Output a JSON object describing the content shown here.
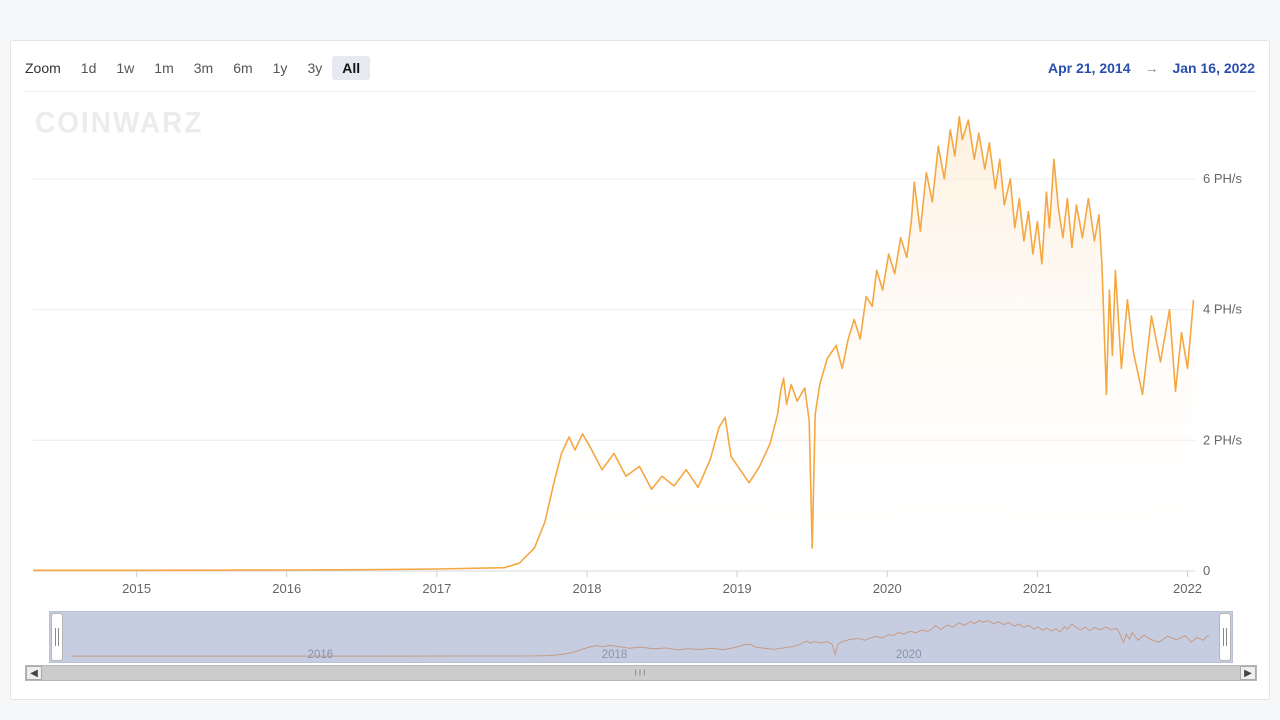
{
  "toolbar": {
    "zoom_label": "Zoom",
    "buttons": [
      {
        "label": "1d",
        "active": false
      },
      {
        "label": "1w",
        "active": false
      },
      {
        "label": "1m",
        "active": false
      },
      {
        "label": "3m",
        "active": false
      },
      {
        "label": "6m",
        "active": false
      },
      {
        "label": "1y",
        "active": false
      },
      {
        "label": "3y",
        "active": false
      },
      {
        "label": "All",
        "active": true
      }
    ]
  },
  "date_range": {
    "from": "Apr 21, 2014",
    "to": "Jan 16, 2022",
    "arrow": "→"
  },
  "watermark": "COINWARZ",
  "chart": {
    "type": "area",
    "line_color": "#f5a742",
    "line_width": 1.6,
    "fill_top_color": "#fde8cd",
    "fill_top_opacity": 0.65,
    "fill_bottom_color": "#ffffff",
    "fill_bottom_opacity": 0.0,
    "grid_color": "#ececec",
    "background_color": "#ffffff",
    "axis_text_color": "#666666",
    "axis_font_size": 13,
    "x": {
      "min": 2014.31,
      "max": 2022.05,
      "ticks": [
        2015,
        2016,
        2017,
        2018,
        2019,
        2020,
        2021,
        2022
      ],
      "tick_labels": [
        "2015",
        "2016",
        "2017",
        "2018",
        "2019",
        "2020",
        "2021",
        "2022"
      ]
    },
    "y": {
      "min": 0,
      "max": 7.1,
      "unit": "PH/s",
      "ticks": [
        0,
        2,
        4,
        6
      ],
      "tick_labels": [
        "0",
        "2 PH/s",
        "4 PH/s",
        "6 PH/s"
      ],
      "gridlines": [
        2,
        4,
        6
      ]
    },
    "series": [
      [
        2014.31,
        0.01
      ],
      [
        2014.6,
        0.01
      ],
      [
        2015.0,
        0.01
      ],
      [
        2015.5,
        0.012
      ],
      [
        2016.0,
        0.015
      ],
      [
        2016.5,
        0.02
      ],
      [
        2017.0,
        0.03
      ],
      [
        2017.45,
        0.05
      ],
      [
        2017.55,
        0.12
      ],
      [
        2017.65,
        0.35
      ],
      [
        2017.72,
        0.75
      ],
      [
        2017.78,
        1.35
      ],
      [
        2017.83,
        1.8
      ],
      [
        2017.88,
        2.05
      ],
      [
        2017.92,
        1.85
      ],
      [
        2017.97,
        2.1
      ],
      [
        2018.02,
        1.9
      ],
      [
        2018.1,
        1.55
      ],
      [
        2018.18,
        1.8
      ],
      [
        2018.26,
        1.45
      ],
      [
        2018.35,
        1.6
      ],
      [
        2018.43,
        1.25
      ],
      [
        2018.5,
        1.45
      ],
      [
        2018.58,
        1.3
      ],
      [
        2018.66,
        1.55
      ],
      [
        2018.74,
        1.28
      ],
      [
        2018.82,
        1.7
      ],
      [
        2018.88,
        2.2
      ],
      [
        2018.92,
        2.35
      ],
      [
        2018.96,
        1.75
      ],
      [
        2019.02,
        1.55
      ],
      [
        2019.08,
        1.35
      ],
      [
        2019.15,
        1.6
      ],
      [
        2019.22,
        1.95
      ],
      [
        2019.27,
        2.4
      ],
      [
        2019.29,
        2.75
      ],
      [
        2019.31,
        2.95
      ],
      [
        2019.33,
        2.55
      ],
      [
        2019.36,
        2.85
      ],
      [
        2019.4,
        2.6
      ],
      [
        2019.45,
        2.8
      ],
      [
        2019.48,
        2.3
      ],
      [
        2019.5,
        0.35
      ],
      [
        2019.52,
        2.4
      ],
      [
        2019.55,
        2.85
      ],
      [
        2019.6,
        3.25
      ],
      [
        2019.66,
        3.45
      ],
      [
        2019.7,
        3.1
      ],
      [
        2019.74,
        3.55
      ],
      [
        2019.78,
        3.85
      ],
      [
        2019.82,
        3.55
      ],
      [
        2019.86,
        4.2
      ],
      [
        2019.9,
        4.05
      ],
      [
        2019.93,
        4.6
      ],
      [
        2019.97,
        4.3
      ],
      [
        2020.01,
        4.85
      ],
      [
        2020.05,
        4.55
      ],
      [
        2020.09,
        5.1
      ],
      [
        2020.13,
        4.8
      ],
      [
        2020.16,
        5.35
      ],
      [
        2020.18,
        5.95
      ],
      [
        2020.22,
        5.2
      ],
      [
        2020.26,
        6.1
      ],
      [
        2020.3,
        5.65
      ],
      [
        2020.34,
        6.5
      ],
      [
        2020.38,
        6.0
      ],
      [
        2020.42,
        6.75
      ],
      [
        2020.45,
        6.35
      ],
      [
        2020.48,
        6.95
      ],
      [
        2020.5,
        6.6
      ],
      [
        2020.54,
        6.9
      ],
      [
        2020.58,
        6.3
      ],
      [
        2020.61,
        6.7
      ],
      [
        2020.65,
        6.15
      ],
      [
        2020.68,
        6.55
      ],
      [
        2020.72,
        5.85
      ],
      [
        2020.75,
        6.3
      ],
      [
        2020.78,
        5.6
      ],
      [
        2020.82,
        6.0
      ],
      [
        2020.85,
        5.25
      ],
      [
        2020.88,
        5.7
      ],
      [
        2020.91,
        5.05
      ],
      [
        2020.94,
        5.5
      ],
      [
        2020.97,
        4.85
      ],
      [
        2021.0,
        5.35
      ],
      [
        2021.03,
        4.7
      ],
      [
        2021.06,
        5.8
      ],
      [
        2021.08,
        5.25
      ],
      [
        2021.11,
        6.3
      ],
      [
        2021.14,
        5.55
      ],
      [
        2021.17,
        5.1
      ],
      [
        2021.2,
        5.7
      ],
      [
        2021.23,
        4.95
      ],
      [
        2021.26,
        5.6
      ],
      [
        2021.3,
        5.1
      ],
      [
        2021.34,
        5.7
      ],
      [
        2021.38,
        5.05
      ],
      [
        2021.41,
        5.45
      ],
      [
        2021.43,
        4.7
      ],
      [
        2021.46,
        2.7
      ],
      [
        2021.48,
        4.3
      ],
      [
        2021.5,
        3.3
      ],
      [
        2021.52,
        4.6
      ],
      [
        2021.56,
        3.1
      ],
      [
        2021.6,
        4.15
      ],
      [
        2021.64,
        3.35
      ],
      [
        2021.7,
        2.7
      ],
      [
        2021.76,
        3.9
      ],
      [
        2021.82,
        3.2
      ],
      [
        2021.88,
        4.0
      ],
      [
        2021.92,
        2.75
      ],
      [
        2021.96,
        3.65
      ],
      [
        2022.0,
        3.1
      ],
      [
        2022.04,
        4.15
      ]
    ]
  },
  "navigator": {
    "background_color": "#c6cde0",
    "border_color": "#b9c1d6",
    "line_color": "#c59a84",
    "text_color": "#8a93aa",
    "x_ticks": [
      2016,
      2018,
      2020
    ],
    "x_tick_labels": [
      "2016",
      "2018",
      "2020"
    ],
    "handle_bg": "#ffffff",
    "handle_border": "#b5b5b5"
  },
  "scrollbar": {
    "track_color": "#cccccc",
    "button_bg": "#eeeeee",
    "grip": "III",
    "left_glyph": "◀",
    "right_glyph": "▶"
  }
}
